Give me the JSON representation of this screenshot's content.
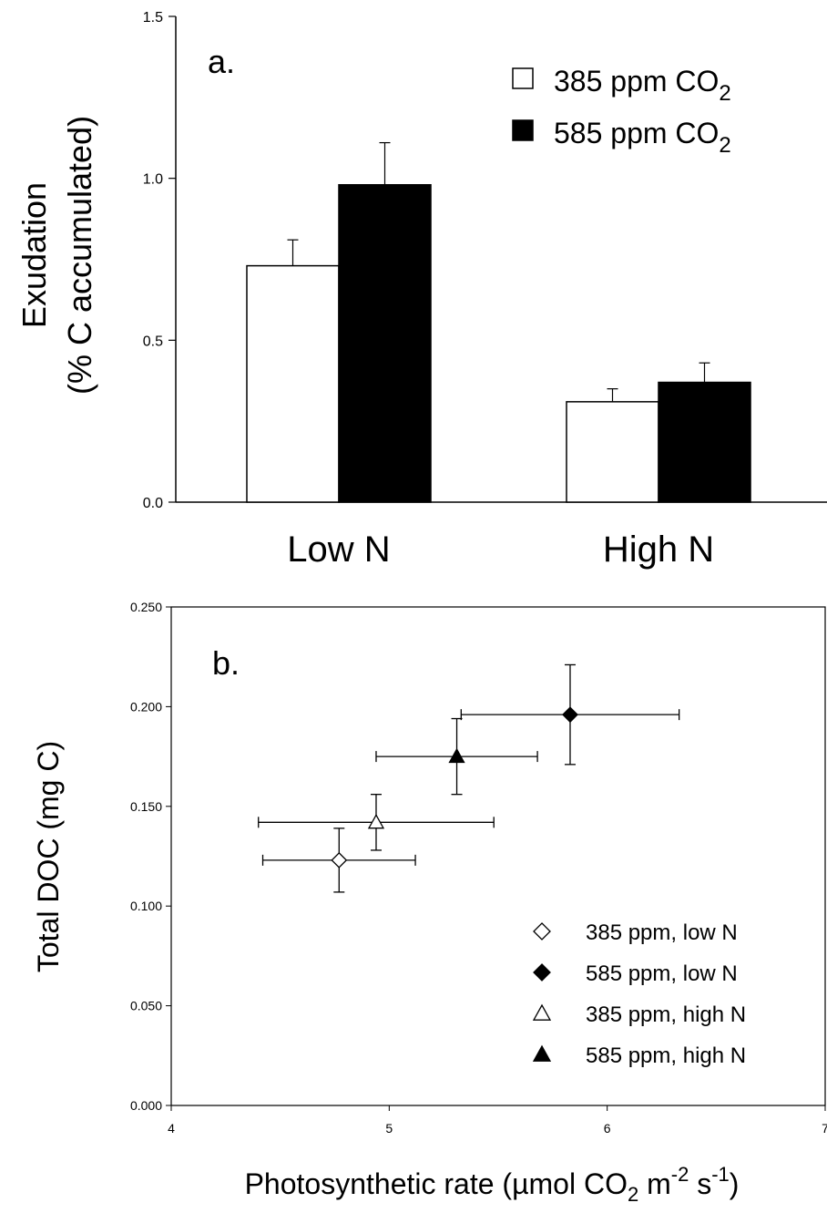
{
  "chart_data": [
    {
      "type": "bar",
      "panel_label": "a.",
      "ylabel_line1": "Exudation",
      "ylabel_line2": "(% C accumulated)",
      "ylim": [
        0,
        1.5
      ],
      "yticks": [
        "0.0",
        "0.5",
        "1.0",
        "1.5"
      ],
      "categories": [
        "Low N",
        "High N"
      ],
      "series": [
        {
          "name": "385 ppm CO",
          "name_sub": "2",
          "fill": "#ffffff",
          "values": [
            0.73,
            0.31
          ],
          "errors": [
            0.08,
            0.04
          ]
        },
        {
          "name": "585 ppm CO",
          "name_sub": "2",
          "fill": "#000000",
          "values": [
            0.98,
            0.37
          ],
          "errors": [
            0.13,
            0.06
          ]
        }
      ],
      "legend_position": "top-right"
    },
    {
      "type": "scatter",
      "panel_label": "b.",
      "ylabel": "Total DOC (mg C)",
      "xlabel_prefix": "Photosynthetic rate (µmol CO",
      "xlabel_sub": "2",
      "xlabel_mid": " m",
      "xlabel_sup1": "-2",
      "xlabel_mid2": " s",
      "xlabel_sup2": "-1",
      "xlabel_suffix": ")",
      "xlim": [
        4,
        7
      ],
      "ylim": [
        0,
        0.25
      ],
      "xticks": [
        "4",
        "5",
        "6",
        "7"
      ],
      "yticks": [
        "0.000",
        "0.050",
        "0.100",
        "0.150",
        "0.200",
        "0.250"
      ],
      "series": [
        {
          "name": "385 ppm, low N",
          "marker": "diamond-open",
          "x": 4.77,
          "y": 0.123,
          "xerr": 0.35,
          "yerr": 0.016
        },
        {
          "name": "585 ppm, low N",
          "marker": "diamond-filled",
          "x": 5.83,
          "y": 0.196,
          "xerr": 0.5,
          "yerr": 0.025
        },
        {
          "name": "385 ppm, high N",
          "marker": "triangle-open",
          "x": 4.94,
          "y": 0.142,
          "xerr": 0.54,
          "yerr": 0.014
        },
        {
          "name": "585 ppm, high N",
          "marker": "triangle-filled",
          "x": 5.31,
          "y": 0.175,
          "xerr": 0.37,
          "yerr": 0.019
        }
      ],
      "legend_position": "bottom-right"
    }
  ]
}
